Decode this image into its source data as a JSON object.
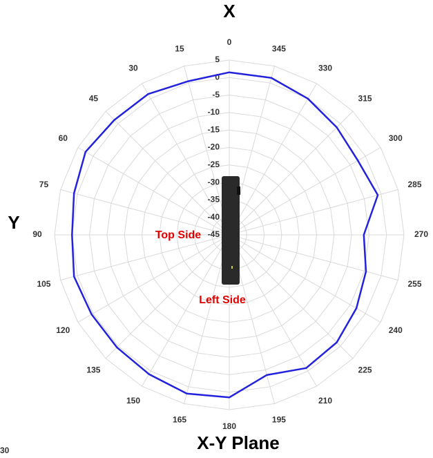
{
  "chart_data": {
    "type": "polar",
    "title": "X",
    "y_axis_label": "Y",
    "caption": "X-Y Plane",
    "annotations": [
      "Top Side",
      "Left Side"
    ],
    "fragment_label": "30",
    "x": [
      0,
      15,
      30,
      45,
      60,
      75,
      90,
      105,
      120,
      135,
      150,
      165,
      180,
      195,
      210,
      225,
      240,
      255,
      270,
      285,
      300,
      315,
      330,
      345
    ],
    "series": [
      {
        "color": "#2222dd",
        "values": [
          1.5,
          0.5,
          1.5,
          1.5,
          2.5,
          1,
          0,
          1,
          0.5,
          0.5,
          1,
          2,
          1.5,
          -3.5,
          -1,
          -1.5,
          -3,
          -4.5,
          -6.5,
          -1,
          -2.5,
          -1.5,
          0,
          1.5
        ]
      }
    ],
    "rlim": [
      -45,
      5
    ],
    "rticks": [
      5,
      0,
      -5,
      -10,
      -15,
      -20,
      -25,
      -30,
      -35,
      -40,
      -45
    ],
    "grid": true
  }
}
